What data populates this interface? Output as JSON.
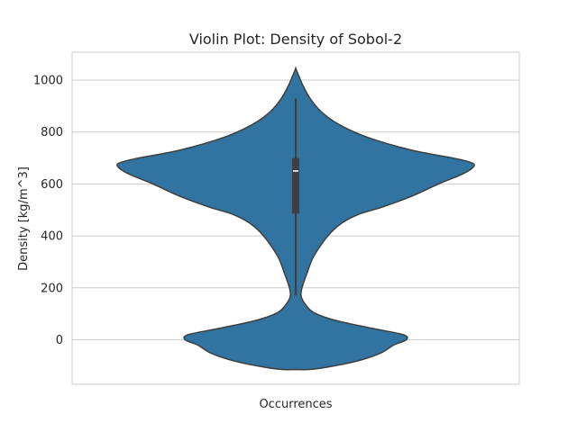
{
  "chart_data": {
    "type": "violin",
    "title": "Violin Plot: Density of Sobol-2",
    "xlabel": "Occurrences",
    "ylabel": "Density [kg/m^3]",
    "ylim": [
      -170,
      1110
    ],
    "yticks": [
      0,
      200,
      400,
      600,
      800,
      1000
    ],
    "grid": true,
    "colors": {
      "violin": "#3274a1",
      "outline": "#3f3f3f",
      "box": "#3f3f3f",
      "median": "#ffffff",
      "grid": "#cccccc",
      "spine": "#cccccc"
    },
    "box": {
      "whisker_low": 170,
      "q1": 485,
      "median": 650,
      "q3": 700,
      "whisker_high": 930
    },
    "density_profile": [
      {
        "y": -115,
        "w": 0.0
      },
      {
        "y": -113,
        "w": 0.1
      },
      {
        "y": -95,
        "w": 0.26
      },
      {
        "y": -75,
        "w": 0.38
      },
      {
        "y": -50,
        "w": 0.48
      },
      {
        "y": -20,
        "w": 0.55
      },
      {
        "y": 0,
        "w": 0.62
      },
      {
        "y": 20,
        "w": 0.6
      },
      {
        "y": 45,
        "w": 0.42
      },
      {
        "y": 75,
        "w": 0.22
      },
      {
        "y": 105,
        "w": 0.1
      },
      {
        "y": 140,
        "w": 0.05
      },
      {
        "y": 170,
        "w": 0.03
      },
      {
        "y": 200,
        "w": 0.035
      },
      {
        "y": 250,
        "w": 0.06
      },
      {
        "y": 320,
        "w": 0.1
      },
      {
        "y": 400,
        "w": 0.18
      },
      {
        "y": 450,
        "w": 0.26
      },
      {
        "y": 485,
        "w": 0.36
      },
      {
        "y": 510,
        "w": 0.48
      },
      {
        "y": 550,
        "w": 0.64
      },
      {
        "y": 600,
        "w": 0.8
      },
      {
        "y": 640,
        "w": 0.94
      },
      {
        "y": 670,
        "w": 1.0
      },
      {
        "y": 685,
        "w": 0.97
      },
      {
        "y": 700,
        "w": 0.88
      },
      {
        "y": 730,
        "w": 0.65
      },
      {
        "y": 780,
        "w": 0.4
      },
      {
        "y": 830,
        "w": 0.24
      },
      {
        "y": 880,
        "w": 0.14
      },
      {
        "y": 930,
        "w": 0.08
      },
      {
        "y": 980,
        "w": 0.04
      },
      {
        "y": 1020,
        "w": 0.015
      },
      {
        "y": 1045,
        "w": 0.0
      }
    ],
    "x_category": ""
  }
}
